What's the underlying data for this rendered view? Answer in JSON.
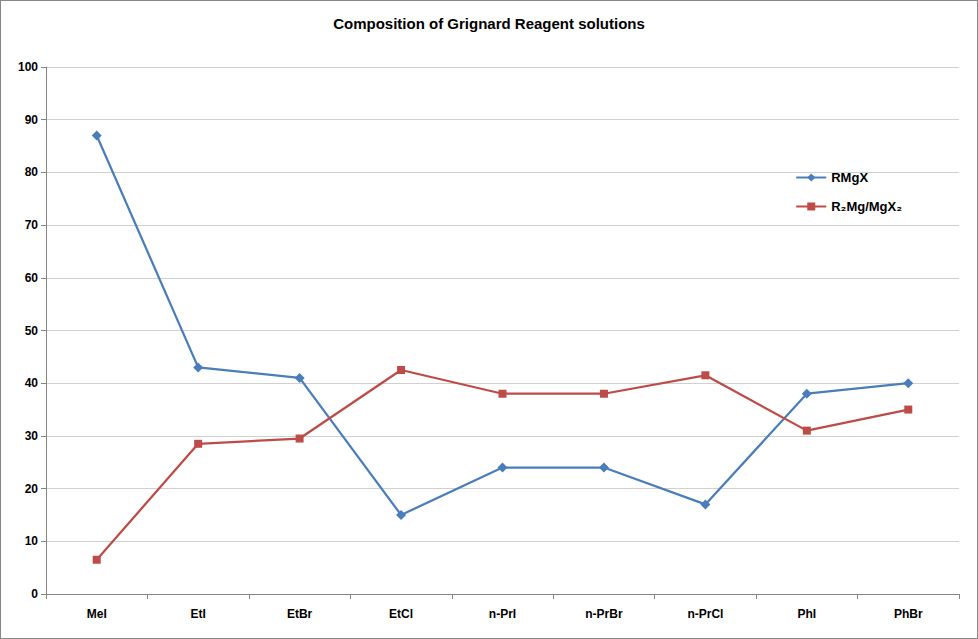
{
  "chart_data": {
    "type": "line",
    "title": "Composition of Grignard Reagent solutions",
    "categories": [
      "MeI",
      "EtI",
      "EtBr",
      "EtCl",
      "n-PrI",
      "n-PrBr",
      "n-PrCl",
      "PhI",
      "PhBr"
    ],
    "series": [
      {
        "name": "RMgX",
        "color": "#4a7ebb",
        "marker": "diamond",
        "line_style": "solid",
        "values": [
          87,
          43,
          41,
          15,
          24,
          24,
          17,
          38,
          40
        ]
      },
      {
        "name": "R₂Mg/MgX₂",
        "color": "#be4b48",
        "marker": "square",
        "line_style": "solid",
        "values": [
          6.5,
          28.5,
          29.5,
          42.5,
          38,
          38,
          41.5,
          31,
          35
        ]
      }
    ],
    "ylim": [
      0,
      100
    ],
    "yticks": [
      0,
      10,
      20,
      30,
      40,
      50,
      60,
      70,
      80,
      90,
      100
    ],
    "grid": true,
    "legend": "right"
  }
}
